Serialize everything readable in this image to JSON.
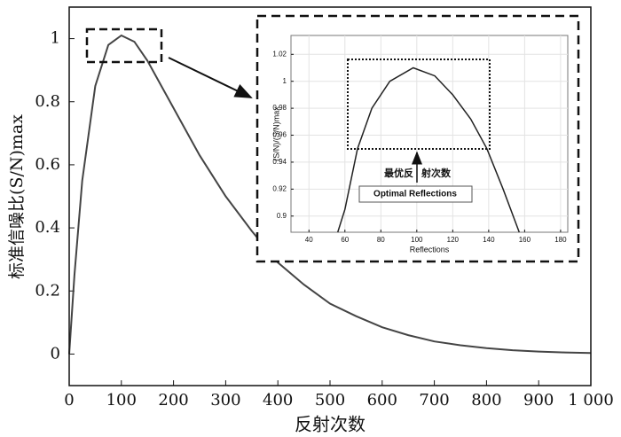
{
  "chart_data": [
    {
      "type": "line",
      "x_label": "反射次数",
      "y_label": "标准信噪比(S/N)max",
      "x": [
        0,
        10,
        25,
        50,
        75,
        100,
        125,
        150,
        200,
        250,
        300,
        350,
        400,
        450,
        500,
        550,
        600,
        650,
        700,
        750,
        800,
        850,
        900,
        950,
        1000
      ],
      "series": [
        {
          "color": "#444444",
          "values": [
            0,
            0.25,
            0.55,
            0.85,
            0.98,
            1.01,
            0.99,
            0.93,
            0.78,
            0.63,
            0.5,
            0.39,
            0.29,
            0.22,
            0.16,
            0.12,
            0.085,
            0.06,
            0.04,
            0.028,
            0.019,
            0.012,
            0.008,
            0.005,
            0.003
          ]
        }
      ],
      "xlim": [
        0,
        1000
      ],
      "ylim": [
        -0.1,
        1.1
      ],
      "xticks": [
        0,
        100,
        200,
        300,
        400,
        500,
        600,
        700,
        800,
        900,
        {
          "value": 1000,
          "label": "1 000"
        }
      ],
      "yticks": [
        0,
        0.2,
        0.4,
        0.6,
        0.8,
        1
      ],
      "grid": false
    },
    {
      "type": "line",
      "x_label": "Reflections",
      "y_label": "(S/N)/(S/N)max",
      "annotations": [
        "最优反",
        "射次数",
        "Optimal Reflections"
      ],
      "x": [
        56,
        60,
        67,
        75,
        85,
        98,
        110,
        120,
        130,
        139,
        148,
        157
      ],
      "series": [
        {
          "color": "#222222",
          "values": [
            0.888,
            0.905,
            0.95,
            0.98,
            1.0,
            1.01,
            1.004,
            0.99,
            0.972,
            0.95,
            0.92,
            0.888
          ]
        }
      ],
      "xlim": [
        30,
        184
      ],
      "ylim": [
        0.888,
        1.034
      ],
      "xticks": [
        40,
        60,
        80,
        100,
        120,
        140,
        160,
        180
      ],
      "yticks": [
        0.9,
        0.92,
        0.94,
        0.96,
        0.98,
        1,
        1.02
      ],
      "grid": true
    }
  ]
}
